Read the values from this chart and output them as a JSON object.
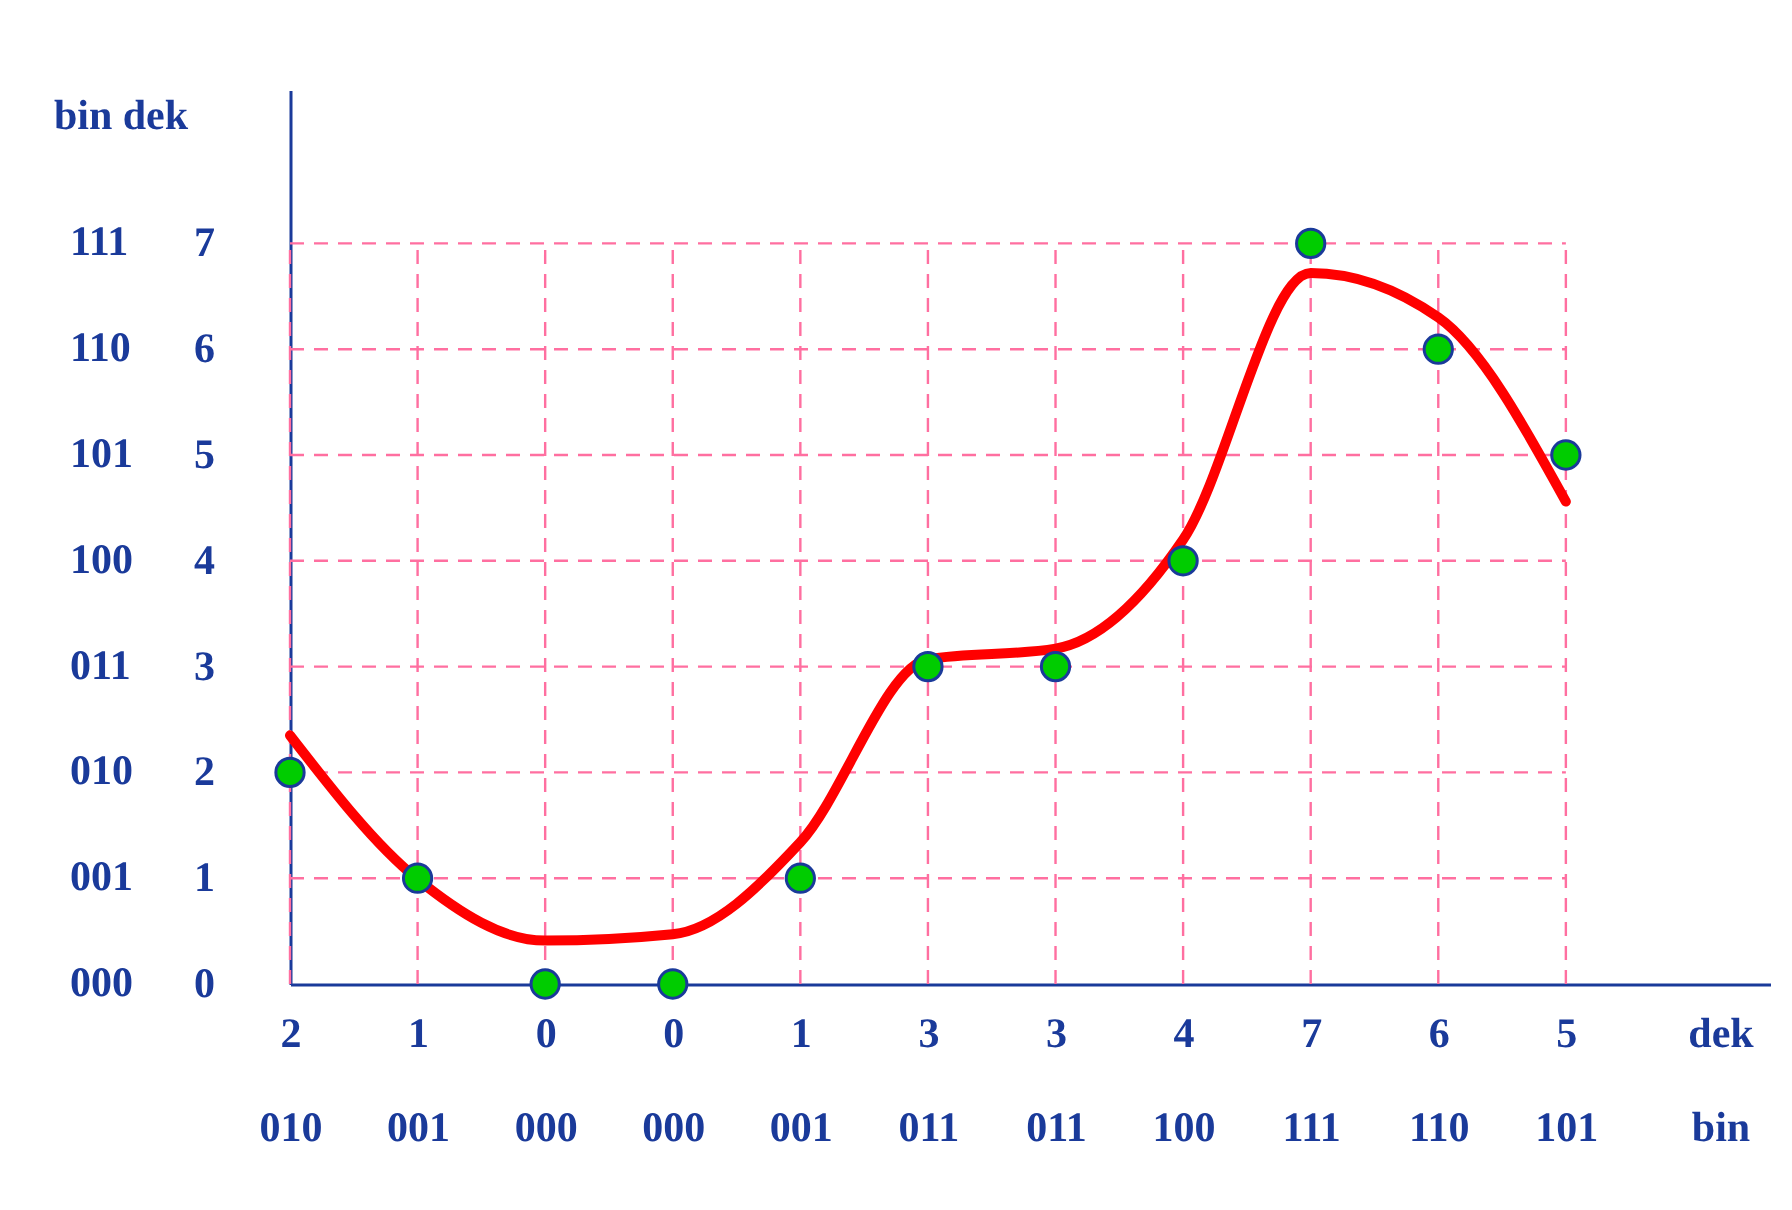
{
  "chart_data": {
    "type": "scatter",
    "xlabel": "dek\nbin",
    "ylabel": "bin  dek",
    "categories": [
      "2\n010",
      "1\n001",
      "0\n000",
      "0\n000",
      "1\n001",
      "3\n011",
      "3\n011",
      "4\n100",
      "7\n111",
      "6\n110",
      "5\n101"
    ],
    "series": [
      {
        "type": "line",
        "color": "#ff0000",
        "values": [
          2.35,
          0.99,
          0.41,
          0.47,
          1.34,
          3.07,
          3.17,
          4.2,
          6.72,
          6.3,
          4.56
        ]
      },
      {
        "color": "#00cc00",
        "marker": "circle",
        "values": [
          2,
          1,
          0,
          0,
          1,
          3,
          3,
          4,
          7,
          6,
          5
        ]
      }
    ],
    "ylim": [
      0,
      8.45
    ],
    "yticks": [
      0,
      1,
      2,
      3,
      4,
      5,
      6,
      7
    ],
    "annotations": [
      "000",
      "001",
      "010",
      "011",
      "100",
      "101",
      "110",
      "111"
    ],
    "grid": true
  }
}
